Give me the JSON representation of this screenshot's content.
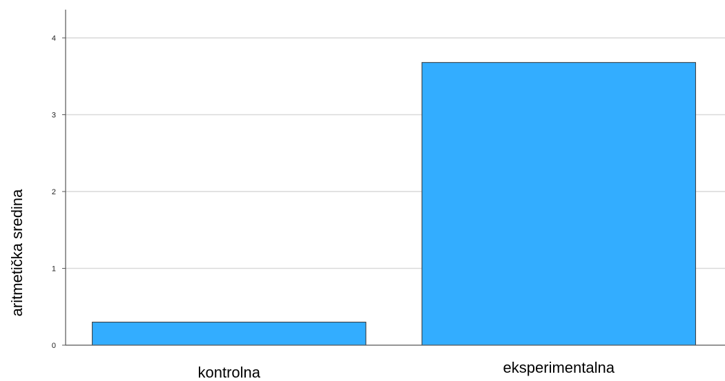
{
  "chart_data": {
    "type": "bar",
    "categories": [
      "kontrolna",
      "eksperimentalna"
    ],
    "values": [
      0.3,
      3.68
    ],
    "title": "",
    "xlabel": "",
    "ylabel": "aritmetička sredina",
    "ylim": [
      0,
      4.4
    ],
    "yticks": [
      "0",
      "1",
      "2",
      "3",
      "4"
    ],
    "grid": true,
    "colors": {
      "bar": "#33adff",
      "bar_stroke": "#333333",
      "grid": "#d9d9d9",
      "axis": "#555555"
    }
  }
}
